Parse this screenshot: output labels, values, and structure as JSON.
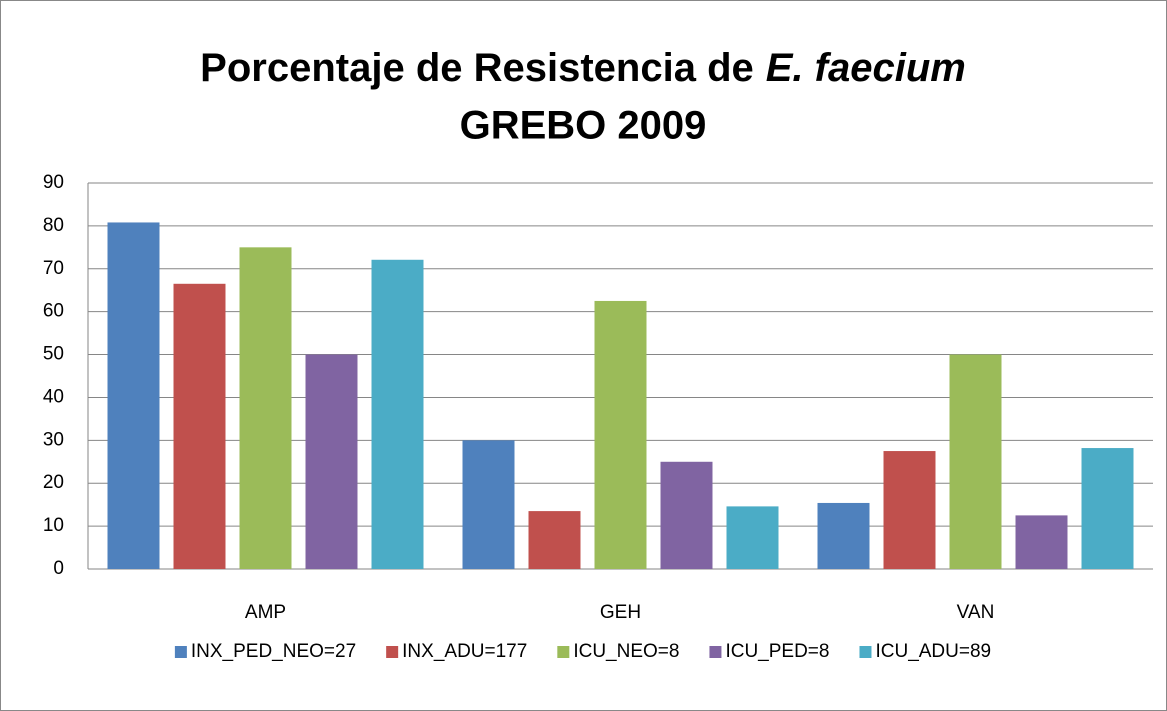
{
  "chart_data": {
    "type": "bar",
    "title": "Porcentaje de Resistencia de",
    "title_italic": "E. faecium",
    "subtitle": "GREBO 2009",
    "categories": [
      "AMP",
      "GEH",
      "VAN"
    ],
    "series": [
      {
        "name": "INX_PED_NEO=27",
        "color": "#4f81bd",
        "values": [
          80.8,
          30,
          15.4
        ]
      },
      {
        "name": "INX_ADU=177",
        "color": "#c0504d",
        "values": [
          66.5,
          13.5,
          27.5
        ]
      },
      {
        "name": "ICU_NEO=8",
        "color": "#9bbb59",
        "values": [
          75,
          62.5,
          50
        ]
      },
      {
        "name": "ICU_PED=8",
        "color": "#8064a2",
        "values": [
          50,
          25,
          12.5
        ]
      },
      {
        "name": "ICU_ADU=89",
        "color": "#4bacc6",
        "values": [
          72.1,
          14.6,
          28.2
        ]
      }
    ],
    "ylim": [
      0,
      90
    ],
    "yticks": [
      0,
      10,
      20,
      30,
      40,
      50,
      60,
      70,
      80,
      90
    ],
    "grid": true,
    "legend": "bottom"
  }
}
